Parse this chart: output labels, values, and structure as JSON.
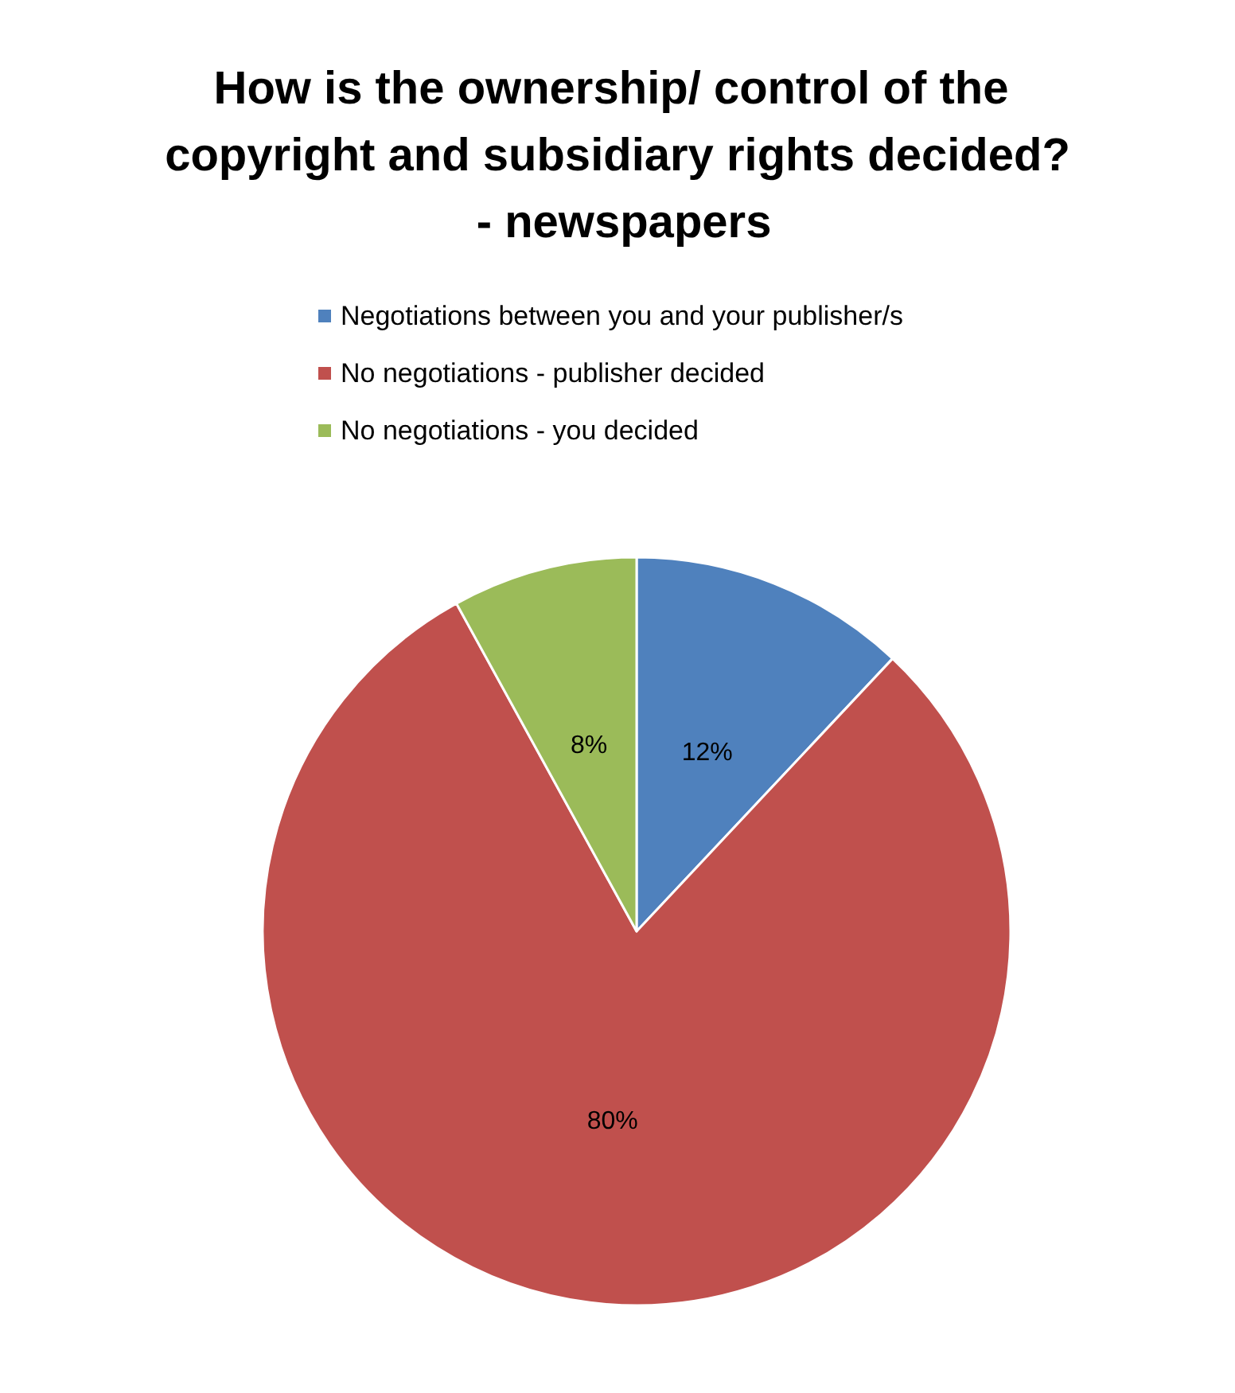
{
  "chart_data": {
    "type": "pie",
    "title": "How is the ownership/ control of the copyright and subsidiary rights decided? - newspapers",
    "categories": [
      "Negotiations between you and your publisher/s",
      "No negotiations - publisher decided",
      "No negotiations - you decided"
    ],
    "values": [
      12,
      80,
      8
    ],
    "colors": [
      "#4f81bd",
      "#c0504d",
      "#9bbb59"
    ],
    "value_labels": [
      "12%",
      "80%",
      "8%"
    ],
    "legend": "top"
  }
}
